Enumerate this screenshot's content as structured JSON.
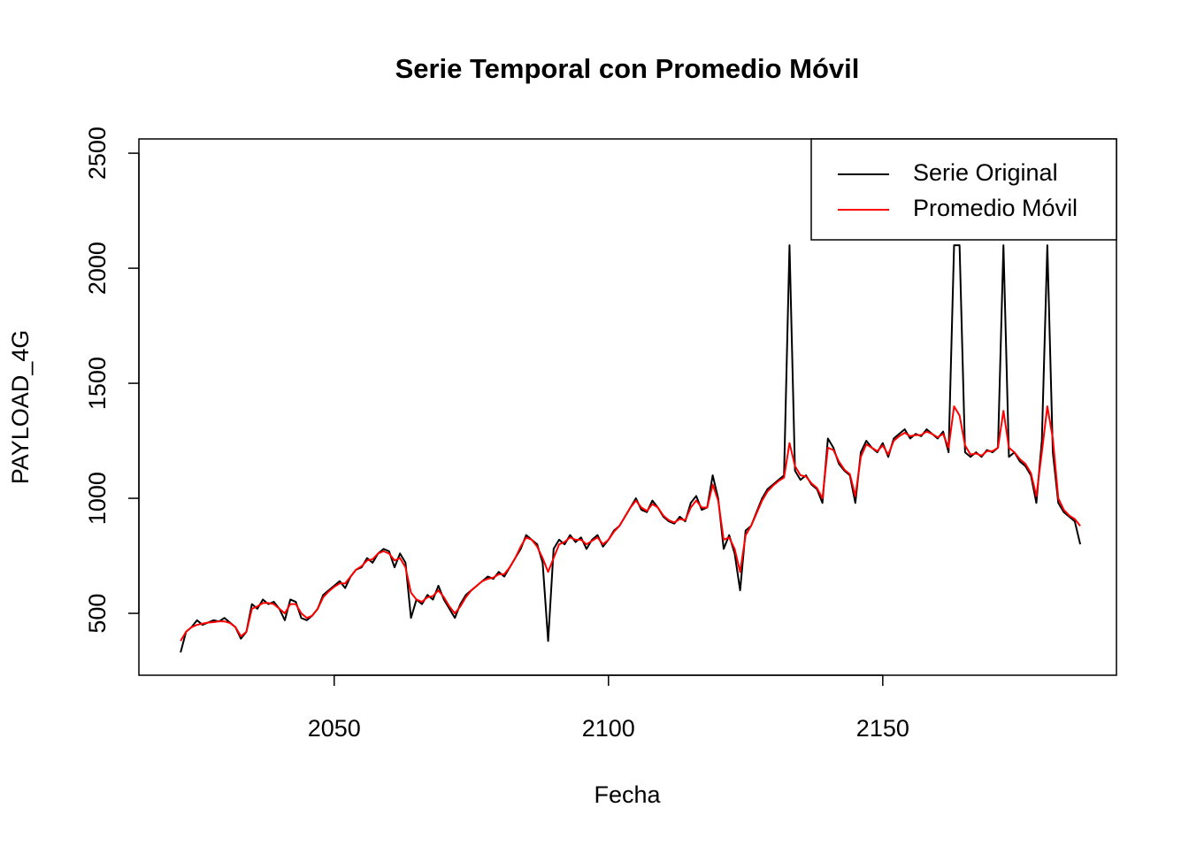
{
  "chart_data": {
    "type": "line",
    "title": "Serie Temporal con Promedio Móvil",
    "x_label": "Fecha",
    "y_label": "PAYLOAD_4G",
    "x": [
      2022,
      2023,
      2024,
      2025,
      2026,
      2027,
      2028,
      2029,
      2030,
      2031,
      2032,
      2033,
      2034,
      2035,
      2036,
      2037,
      2038,
      2039,
      2040,
      2041,
      2042,
      2043,
      2044,
      2045,
      2046,
      2047,
      2048,
      2049,
      2050,
      2051,
      2052,
      2053,
      2054,
      2055,
      2056,
      2057,
      2058,
      2059,
      2060,
      2061,
      2062,
      2063,
      2064,
      2065,
      2066,
      2067,
      2068,
      2069,
      2070,
      2071,
      2072,
      2073,
      2074,
      2075,
      2076,
      2077,
      2078,
      2079,
      2080,
      2081,
      2082,
      2083,
      2084,
      2085,
      2086,
      2087,
      2088,
      2089,
      2090,
      2091,
      2092,
      2093,
      2094,
      2095,
      2096,
      2097,
      2098,
      2099,
      2100,
      2101,
      2102,
      2103,
      2104,
      2105,
      2106,
      2107,
      2108,
      2109,
      2110,
      2111,
      2112,
      2113,
      2114,
      2115,
      2116,
      2117,
      2118,
      2119,
      2120,
      2121,
      2122,
      2123,
      2124,
      2125,
      2126,
      2127,
      2128,
      2129,
      2130,
      2131,
      2132,
      2133,
      2134,
      2135,
      2136,
      2137,
      2138,
      2139,
      2140,
      2141,
      2142,
      2143,
      2144,
      2145,
      2146,
      2147,
      2148,
      2149,
      2150,
      2151,
      2152,
      2153,
      2154,
      2155,
      2156,
      2157,
      2158,
      2159,
      2160,
      2161,
      2162,
      2163,
      2164,
      2165,
      2166,
      2167,
      2168,
      2169,
      2170,
      2171,
      2172,
      2173,
      2174,
      2175,
      2176,
      2177,
      2178,
      2179,
      2180,
      2181,
      2182,
      2183,
      2184,
      2185,
      2186
    ],
    "series": [
      {
        "name": "Serie Original",
        "color": "#000000",
        "values": [
          330,
          420,
          440,
          470,
          450,
          460,
          470,
          465,
          480,
          460,
          440,
          390,
          420,
          540,
          520,
          560,
          540,
          550,
          520,
          470,
          560,
          550,
          480,
          470,
          490,
          520,
          580,
          600,
          620,
          640,
          610,
          660,
          690,
          700,
          740,
          720,
          760,
          780,
          770,
          700,
          760,
          720,
          480,
          560,
          540,
          580,
          560,
          620,
          560,
          520,
          480,
          540,
          580,
          600,
          620,
          640,
          660,
          650,
          680,
          660,
          700,
          740,
          780,
          840,
          820,
          800,
          720,
          380,
          780,
          820,
          800,
          840,
          810,
          830,
          780,
          820,
          840,
          790,
          820,
          860,
          880,
          920,
          960,
          1000,
          950,
          940,
          990,
          960,
          920,
          900,
          890,
          920,
          900,
          980,
          1010,
          950,
          960,
          1100,
          1000,
          780,
          840,
          760,
          600,
          860,
          880,
          940,
          1000,
          1040,
          1060,
          1080,
          1100,
          2100,
          1120,
          1080,
          1100,
          1060,
          1040,
          980,
          1260,
          1220,
          1150,
          1120,
          1100,
          980,
          1200,
          1250,
          1220,
          1200,
          1240,
          1180,
          1260,
          1280,
          1300,
          1260,
          1280,
          1270,
          1300,
          1280,
          1260,
          1290,
          1200,
          2100,
          2100,
          1200,
          1180,
          1200,
          1180,
          1210,
          1200,
          1220,
          2100,
          1180,
          1200,
          1160,
          1140,
          1100,
          980,
          1250,
          2100,
          1200,
          980,
          940,
          920,
          900,
          800
        ]
      },
      {
        "name": "Promedio Móvil",
        "color": "#ff0000",
        "values": [
          380,
          420,
          440,
          450,
          455,
          460,
          462,
          465,
          465,
          458,
          440,
          400,
          420,
          520,
          530,
          545,
          545,
          540,
          520,
          500,
          540,
          540,
          500,
          480,
          490,
          520,
          570,
          595,
          615,
          630,
          630,
          660,
          690,
          705,
          730,
          735,
          760,
          770,
          760,
          730,
          740,
          700,
          590,
          560,
          550,
          570,
          575,
          600,
          570,
          530,
          500,
          530,
          570,
          600,
          620,
          640,
          650,
          655,
          670,
          670,
          700,
          740,
          790,
          830,
          820,
          790,
          740,
          680,
          740,
          800,
          810,
          830,
          820,
          820,
          800,
          815,
          830,
          800,
          820,
          855,
          880,
          920,
          960,
          990,
          960,
          945,
          975,
          960,
          925,
          905,
          895,
          910,
          905,
          960,
          990,
          960,
          960,
          1060,
          990,
          820,
          830,
          780,
          680,
          840,
          880,
          935,
          990,
          1030,
          1055,
          1075,
          1090,
          1240,
          1140,
          1100,
          1095,
          1065,
          1045,
          1000,
          1220,
          1210,
          1160,
          1125,
          1105,
          1010,
          1180,
          1235,
          1220,
          1205,
          1230,
          1190,
          1250,
          1270,
          1285,
          1270,
          1275,
          1275,
          1290,
          1280,
          1265,
          1280,
          1220,
          1400,
          1360,
          1230,
          1190,
          1195,
          1185,
          1205,
          1205,
          1220,
          1380,
          1220,
          1200,
          1170,
          1150,
          1110,
          1010,
          1200,
          1400,
          1260,
          1000,
          950,
          925,
          910,
          880
        ]
      }
    ],
    "xlim": [
      2014.4,
      2192.6
    ],
    "xticks": [
      2050,
      2100,
      2150
    ],
    "ylim": [
      231,
      2562
    ],
    "yticks": [
      500,
      1000,
      1500,
      2000,
      2500
    ],
    "legend": "topright"
  }
}
